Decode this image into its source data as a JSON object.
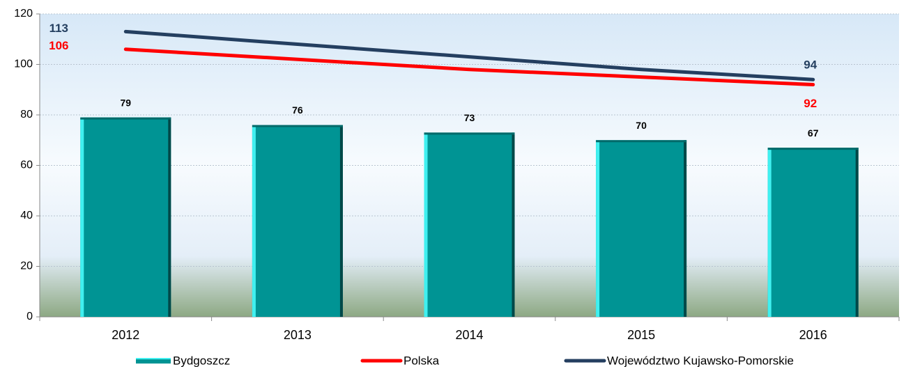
{
  "chart_data": {
    "type": "bar",
    "categories": [
      "2012",
      "2013",
      "2014",
      "2015",
      "2016"
    ],
    "series": [
      {
        "name": "Bydgoszcz",
        "type": "bar",
        "color": "#009494",
        "values": [
          79,
          76,
          73,
          70,
          67
        ]
      },
      {
        "name": "Polska",
        "type": "line",
        "color": "#ff0000",
        "values": [
          106,
          102,
          98,
          95,
          92
        ],
        "value_labels": [
          106,
          null,
          null,
          null,
          92
        ]
      },
      {
        "name": "Województwo Kujawsko-Pomorskie",
        "type": "line",
        "color": "#243f60",
        "values": [
          113,
          108,
          103,
          98,
          94
        ],
        "value_labels": [
          113,
          null,
          null,
          null,
          94
        ]
      }
    ],
    "ylim": [
      0,
      120
    ],
    "yticks": [
      0,
      20,
      40,
      60,
      80,
      100,
      120
    ],
    "grid": true,
    "legend": "bottom"
  }
}
